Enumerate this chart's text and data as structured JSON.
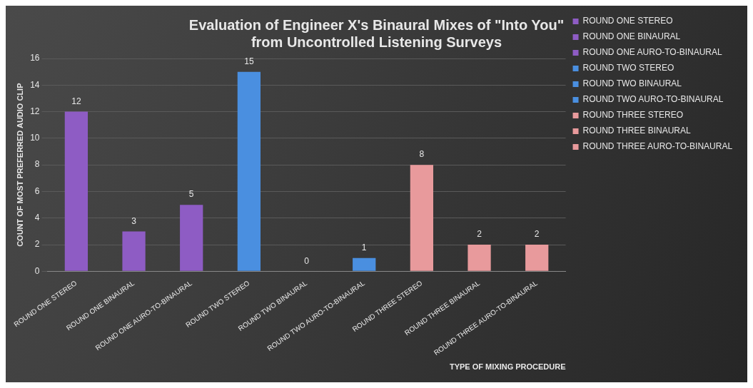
{
  "chart_data": {
    "type": "bar",
    "title": "Evaluation of Engineer X's Binaural Mixes of \"Into You\"\nfrom Uncontrolled Listening Surveys",
    "xlabel": "TYPE OF MIXING PROCEDURE",
    "ylabel": "COUNT OF MOST PREFERRED AUDIO CLIP",
    "categories": [
      "ROUND ONE STEREO",
      "ROUND ONE BINAURAL",
      "ROUND ONE AURO-TO-BINAURAL",
      "ROUND TWO STEREO",
      "ROUND TWO BINAURAL",
      "ROUND TWO AURO-TO-BINAURAL",
      "ROUND THREE STEREO",
      "ROUND THREE BINAURAL",
      "ROUND THREE AURO-TO-BINAURAL"
    ],
    "series": [
      {
        "name": "ROUND ONE STEREO",
        "color": "#8e5cc4",
        "values": [
          12,
          null,
          null,
          null,
          null,
          null,
          null,
          null,
          null
        ]
      },
      {
        "name": "ROUND ONE BINAURAL",
        "color": "#8e5cc4",
        "values": [
          null,
          3,
          null,
          null,
          null,
          null,
          null,
          null,
          null
        ]
      },
      {
        "name": "ROUND ONE AURO-TO-BINAURAL",
        "color": "#8e5cc4",
        "values": [
          null,
          null,
          5,
          null,
          null,
          null,
          null,
          null,
          null
        ]
      },
      {
        "name": "ROUND TWO STEREO",
        "color": "#4a8fe0",
        "values": [
          null,
          null,
          null,
          15,
          null,
          null,
          null,
          null,
          null
        ]
      },
      {
        "name": "ROUND TWO BINAURAL",
        "color": "#4a8fe0",
        "values": [
          null,
          null,
          null,
          null,
          0,
          null,
          null,
          null,
          null
        ]
      },
      {
        "name": "ROUND TWO AURO-TO-BINAURAL",
        "color": "#4a8fe0",
        "values": [
          null,
          null,
          null,
          null,
          null,
          1,
          null,
          null,
          null
        ]
      },
      {
        "name": "ROUND THREE STEREO",
        "color": "#e89a9c",
        "values": [
          null,
          null,
          null,
          null,
          null,
          null,
          8,
          null,
          null
        ]
      },
      {
        "name": "ROUND THREE BINAURAL",
        "color": "#e89a9c",
        "values": [
          null,
          null,
          null,
          null,
          null,
          null,
          null,
          2,
          null
        ]
      },
      {
        "name": "ROUND THREE AURO-TO-BINAURAL",
        "color": "#e89a9c",
        "values": [
          null,
          null,
          null,
          null,
          null,
          null,
          null,
          null,
          2
        ]
      }
    ],
    "ylim": [
      0,
      16
    ],
    "yticks": [
      0,
      2,
      4,
      6,
      8,
      10,
      12,
      14,
      16
    ],
    "grid": "y",
    "legend": "right",
    "data_labels": true
  }
}
